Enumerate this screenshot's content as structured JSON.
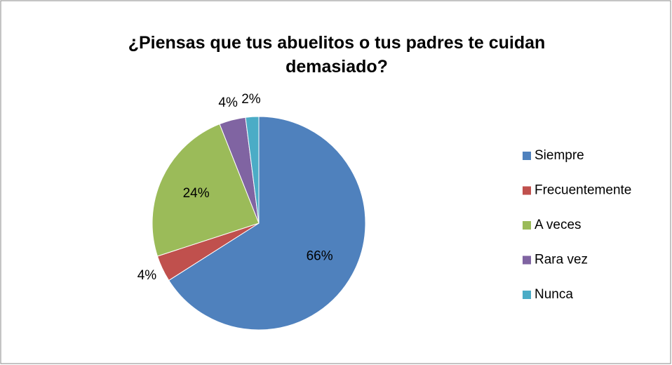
{
  "chart_data": {
    "type": "pie",
    "title": "¿Piensas que tus abuelitos o tus padres te cuidan demasiado?",
    "categories": [
      "Siempre",
      "Frecuentemente",
      "A veces",
      "Rara vez",
      "Nunca"
    ],
    "values": [
      66,
      4,
      24,
      4,
      2
    ],
    "value_labels": [
      "66%",
      "4%",
      "24%",
      "4%",
      "2%"
    ],
    "colors": [
      "#4f81bd",
      "#c0504d",
      "#9bbb59",
      "#8064a2",
      "#4bacc6"
    ],
    "legend": "right"
  }
}
